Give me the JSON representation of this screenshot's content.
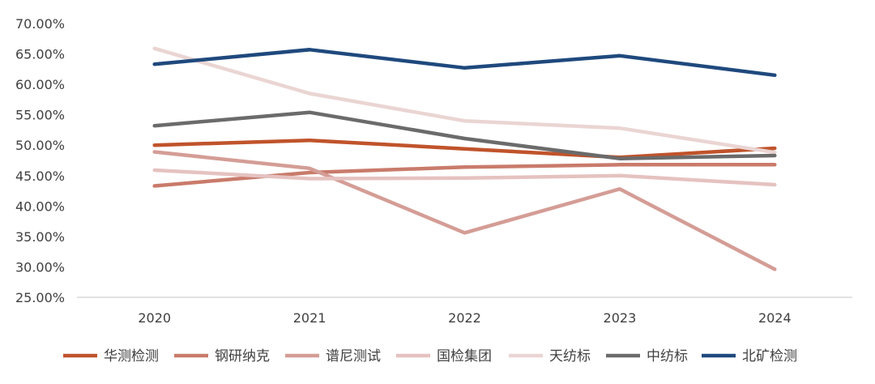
{
  "chart_data": {
    "type": "line",
    "title": "",
    "xlabel": "",
    "ylabel": "",
    "categories": [
      "2020",
      "2021",
      "2022",
      "2023",
      "2024"
    ],
    "y_ticks": [
      "25.00%",
      "30.00%",
      "35.00%",
      "40.00%",
      "45.00%",
      "50.00%",
      "55.00%",
      "60.00%",
      "65.00%",
      "70.00%"
    ],
    "ylim": [
      25,
      70
    ],
    "legend_position": "bottom",
    "series": [
      {
        "name": "华测检测",
        "color": "#c0532b",
        "values": [
          50.0,
          50.8,
          49.4,
          48.0,
          49.5
        ]
      },
      {
        "name": "钢研纳克",
        "color": "#c97b6b",
        "values": [
          43.3,
          45.5,
          46.4,
          46.8,
          46.8
        ]
      },
      {
        "name": "谱尼测试",
        "color": "#d49d96",
        "values": [
          48.9,
          46.2,
          35.6,
          42.8,
          29.6
        ]
      },
      {
        "name": "国检集团",
        "color": "#e5c2c0",
        "values": [
          45.9,
          44.5,
          44.6,
          45.0,
          43.5
        ]
      },
      {
        "name": "天纺标",
        "color": "#ead5d3",
        "values": [
          65.9,
          58.5,
          54.0,
          52.8,
          48.8
        ]
      },
      {
        "name": "中纺标",
        "color": "#6b6b6b",
        "values": [
          53.2,
          55.4,
          51.1,
          47.8,
          48.3
        ]
      },
      {
        "name": "北矿检测",
        "color": "#1f497d",
        "values": [
          63.3,
          65.7,
          62.7,
          64.7,
          61.5
        ]
      }
    ]
  }
}
